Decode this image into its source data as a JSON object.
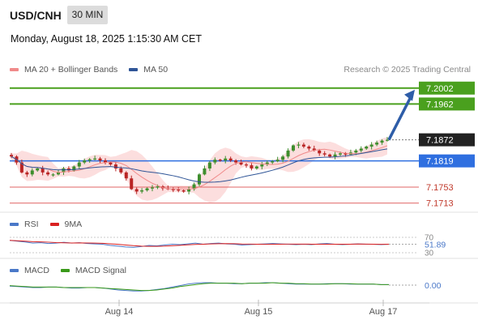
{
  "header": {
    "symbol": "USD/CNH",
    "timeframe": "30 MIN",
    "datetime": "Monday, August 18, 2025 1:15:30 AM CET",
    "credit": "Research © 2025 Trading Central"
  },
  "legend": {
    "main": [
      {
        "label": "MA 20 + Bollinger Bands",
        "color": "#f08a8a"
      },
      {
        "label": "MA 50",
        "color": "#2f5597"
      }
    ],
    "rsi": [
      {
        "label": "RSI",
        "color": "#4a78c8"
      },
      {
        "label": "9MA",
        "color": "#d92020"
      }
    ],
    "macd": [
      {
        "label": "MACD",
        "color": "#4a78c8"
      },
      {
        "label": "MACD Signal",
        "color": "#3a9a1a"
      }
    ]
  },
  "colors": {
    "up_candle": "#3e8e2e",
    "down_candle": "#b92424",
    "bollinger_fill": "#fbd3d3",
    "resistance": "#4aa01e",
    "pivot": "#2f6fe0",
    "support": "#e06464",
    "arrow": "#2e5da8",
    "last_price_bg": "#222222"
  },
  "chart_data": [
    {
      "type": "candlestick",
      "x_ticks": [
        "Aug 14",
        "Aug 15",
        "Aug 17"
      ],
      "ylim": [
        7.169,
        7.203
      ],
      "levels": [
        {
          "value": 7.2002,
          "label": "7.2002",
          "kind": "resistance"
        },
        {
          "value": 7.1962,
          "label": "7.1962",
          "kind": "resistance"
        },
        {
          "value": 7.1872,
          "label": "7.1872",
          "kind": "last-price"
        },
        {
          "value": 7.1819,
          "label": "7.1819",
          "kind": "pivot"
        },
        {
          "value": 7.1753,
          "label": "7.1753",
          "kind": "support"
        },
        {
          "value": 7.1713,
          "label": "7.1713",
          "kind": "support"
        }
      ],
      "arrow": {
        "from": 7.1872,
        "to": 7.2002,
        "direction": "up"
      },
      "close": [
        7.183,
        7.1815,
        7.179,
        7.1785,
        7.1795,
        7.18,
        7.179,
        7.1785,
        7.1785,
        7.179,
        7.18,
        7.1795,
        7.1805,
        7.1815,
        7.182,
        7.1823,
        7.1825,
        7.182,
        7.1815,
        7.181,
        7.18,
        7.179,
        7.1775,
        7.1748,
        7.1742,
        7.1745,
        7.175,
        7.1752,
        7.1755,
        7.175,
        7.1748,
        7.1747,
        7.1745,
        7.1742,
        7.1748,
        7.176,
        7.1785,
        7.18,
        7.1815,
        7.1822,
        7.182,
        7.1825,
        7.182,
        7.1815,
        7.181,
        7.1808,
        7.18,
        7.1805,
        7.181,
        7.1815,
        7.1818,
        7.1822,
        7.183,
        7.1845,
        7.1858,
        7.186,
        7.1855,
        7.185,
        7.1845,
        7.1838,
        7.1835,
        7.183,
        7.1835,
        7.1838,
        7.1835,
        7.184,
        7.1845,
        7.185,
        7.1855,
        7.186,
        7.1865,
        7.187,
        7.1872
      ]
    },
    {
      "type": "line",
      "name": "RSI",
      "ylim": [
        30,
        70
      ],
      "y_ticks": [
        30,
        70
      ],
      "last_value": 51.89,
      "last_label": "51.89",
      "values": [
        62,
        60,
        58,
        55,
        56,
        54,
        55,
        57,
        55,
        56,
        54,
        53,
        52,
        49,
        47,
        45,
        44,
        46,
        49,
        48,
        50,
        52,
        51,
        53,
        55,
        52,
        54,
        55,
        53,
        52,
        50,
        51,
        52,
        53,
        54,
        53,
        52,
        51,
        52,
        51,
        53,
        54,
        52,
        51,
        52,
        53,
        52,
        52,
        51,
        52
      ]
    },
    {
      "type": "line",
      "name": "MACD",
      "last_value": 0.0,
      "last_label": "0.00",
      "macd": [
        -2,
        -3,
        -4,
        -5,
        -5,
        -4,
        -4,
        -5,
        -6,
        -6,
        -5,
        -5,
        -6,
        -8,
        -10,
        -11,
        -12,
        -12,
        -11,
        -9,
        -7,
        -4,
        -1,
        2,
        4,
        5,
        5,
        4,
        4,
        3,
        3,
        4,
        4,
        5,
        5,
        4,
        3,
        2,
        2,
        2,
        2,
        3,
        3,
        3,
        2,
        2,
        2,
        2,
        1,
        1
      ],
      "signal": [
        -1,
        -2,
        -3,
        -4,
        -4,
        -4,
        -4,
        -5,
        -5,
        -5,
        -5,
        -5,
        -6,
        -7,
        -8,
        -9,
        -10,
        -11,
        -11,
        -10,
        -8,
        -6,
        -3,
        -1,
        1,
        3,
        4,
        4,
        4,
        4,
        3,
        4,
        4,
        4,
        5,
        4,
        4,
        3,
        3,
        2,
        2,
        2,
        3,
        3,
        3,
        2,
        2,
        2,
        1,
        1
      ]
    }
  ]
}
